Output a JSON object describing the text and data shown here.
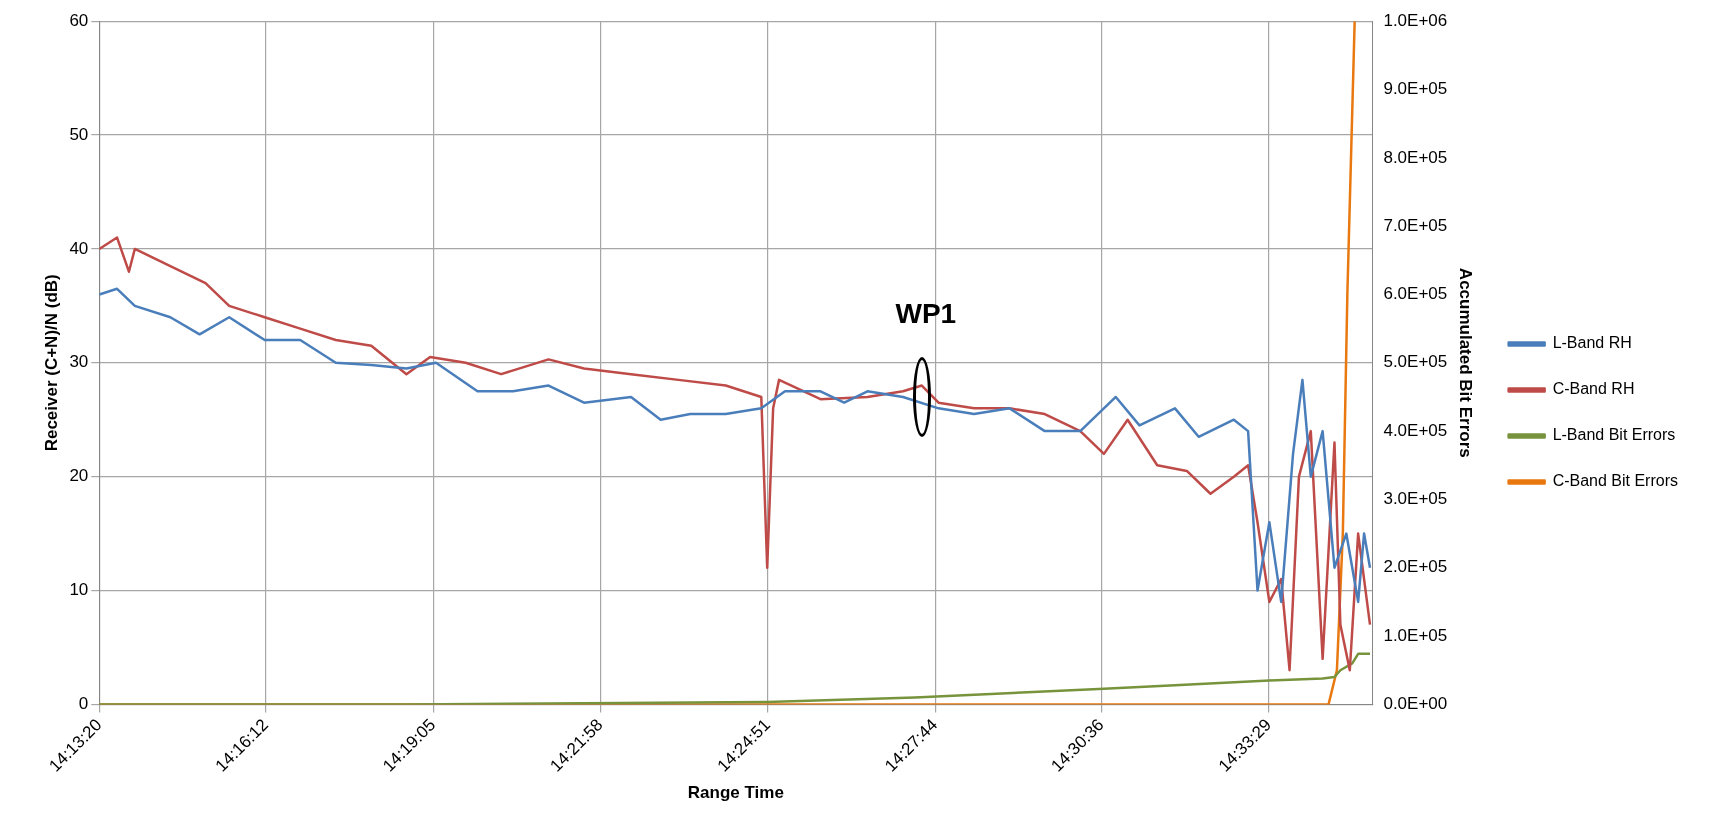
{
  "chart_data": {
    "type": "line",
    "xlabel": "Range Time",
    "ylabel": "Receiver (C+N)/N (dB)",
    "y2label": "Accumulated Bit Errors",
    "xlim": [
      14.2222,
      14.5878
    ],
    "xticks": [
      {
        "value": 14.22222,
        "label": "14:13:20"
      },
      {
        "value": 14.27,
        "label": "14:16:12"
      },
      {
        "value": 14.31806,
        "label": "14:19:05"
      },
      {
        "value": 14.36611,
        "label": "14:21:58"
      },
      {
        "value": 14.41417,
        "label": "14:24:51"
      },
      {
        "value": 14.46222,
        "label": "14:27:44"
      },
      {
        "value": 14.51,
        "label": "14:30:36"
      },
      {
        "value": 14.55806,
        "label": "14:33:29"
      }
    ],
    "ylim": [
      0,
      60
    ],
    "yticks": [
      0,
      10,
      20,
      30,
      40,
      50,
      60
    ],
    "y2lim": [
      0,
      1000000
    ],
    "y2ticks": [
      {
        "value": 0,
        "label": "0.0E+00"
      },
      {
        "value": 100000,
        "label": "1.0E+05"
      },
      {
        "value": 200000,
        "label": "2.0E+05"
      },
      {
        "value": 300000,
        "label": "3.0E+05"
      },
      {
        "value": 400000,
        "label": "4.0E+05"
      },
      {
        "value": 500000,
        "label": "5.0E+05"
      },
      {
        "value": 600000,
        "label": "6.0E+05"
      },
      {
        "value": 700000,
        "label": "7.0E+05"
      },
      {
        "value": 800000,
        "label": "8.0E+05"
      },
      {
        "value": 900000,
        "label": "9.0E+05"
      },
      {
        "value": 1000000,
        "label": "1.0E+06"
      }
    ],
    "grid": true,
    "legend": "right",
    "annotations": [
      {
        "text": "WP1",
        "x": 14.4584,
        "y": 27
      }
    ],
    "series": [
      {
        "name": "L-Band RH",
        "color": "#4a7ebb",
        "x": [
          14.2222,
          14.2273,
          14.2324,
          14.2426,
          14.251,
          14.2595,
          14.2697,
          14.2799,
          14.2901,
          14.3003,
          14.3104,
          14.3189,
          14.3308,
          14.341,
          14.3512,
          14.3614,
          14.3749,
          14.3834,
          14.3919,
          14.4021,
          14.4123,
          14.4191,
          14.4293,
          14.4361,
          14.4428,
          14.453,
          14.4632,
          14.4734,
          14.4836,
          14.4937,
          14.5039,
          14.5141,
          14.5209,
          14.5311,
          14.5379,
          14.548,
          14.5521,
          14.5548,
          14.5582,
          14.5616,
          14.565,
          14.5677,
          14.5701,
          14.5735,
          14.5769,
          14.5803,
          14.5837,
          14.5854,
          14.5871
        ],
        "values": [
          36,
          36.5,
          35,
          34,
          32.5,
          34,
          32,
          32,
          30,
          29.8,
          29.5,
          30,
          27.5,
          27.5,
          28,
          26.5,
          27,
          25,
          25.5,
          25.5,
          26,
          27.5,
          27.5,
          26.5,
          27.5,
          27,
          26,
          25.5,
          26,
          24,
          24,
          27,
          24.5,
          26,
          23.5,
          25,
          24,
          10,
          16,
          9,
          22,
          28.5,
          20,
          24,
          12,
          15,
          9,
          15,
          12
        ]
      },
      {
        "name": "C-Band RH",
        "color": "#be4b48",
        "x": [
          14.2222,
          14.2273,
          14.2307,
          14.2324,
          14.2426,
          14.2527,
          14.2595,
          14.2697,
          14.2799,
          14.2901,
          14.3003,
          14.3104,
          14.3172,
          14.3274,
          14.3376,
          14.3512,
          14.3614,
          14.3749,
          14.3885,
          14.4021,
          14.4123,
          14.414,
          14.4157,
          14.4174,
          14.4293,
          14.4428,
          14.453,
          14.4584,
          14.4632,
          14.4734,
          14.4836,
          14.4937,
          14.5039,
          14.5107,
          14.5175,
          14.526,
          14.5345,
          14.5413,
          14.548,
          14.5521,
          14.5548,
          14.5582,
          14.5616,
          14.564,
          14.5667,
          14.5701,
          14.5735,
          14.5769,
          14.5786,
          14.5813,
          14.5837,
          14.5871
        ],
        "values": [
          40,
          41,
          38,
          40,
          38.5,
          37,
          35,
          34,
          33,
          32,
          31.5,
          29,
          30.5,
          30,
          29,
          30.3,
          29.5,
          29,
          28.5,
          28,
          27,
          12,
          26,
          28.5,
          26.8,
          27,
          27.5,
          28,
          26.5,
          26,
          26,
          25.5,
          24,
          22,
          25,
          21,
          20.5,
          18.5,
          20,
          21,
          16,
          9,
          11,
          3,
          20,
          24,
          4,
          23,
          7,
          3,
          15,
          7
        ]
      },
      {
        "name": "L-Band Bit Errors",
        "color": "#77933c",
        "axis": "y2",
        "x": [
          14.2222,
          14.3104,
          14.3614,
          14.414,
          14.4564,
          14.4903,
          14.5107,
          14.5311,
          14.5582,
          14.5735,
          14.5769,
          14.5786,
          14.582,
          14.5837,
          14.5871
        ],
        "values": [
          0,
          0,
          1500,
          3500,
          10000,
          18000,
          23000,
          28000,
          35000,
          38000,
          40000,
          50000,
          60000,
          74000,
          74000
        ]
      },
      {
        "name": "C-Band Bit Errors",
        "color": "#e8780f",
        "axis": "y2",
        "x": [
          14.2222,
          14.4,
          14.5,
          14.5752,
          14.5776,
          14.5793,
          14.5806,
          14.5827
        ],
        "values": [
          0,
          0,
          0,
          0,
          50000,
          250000,
          600000,
          1000000
        ]
      }
    ]
  }
}
